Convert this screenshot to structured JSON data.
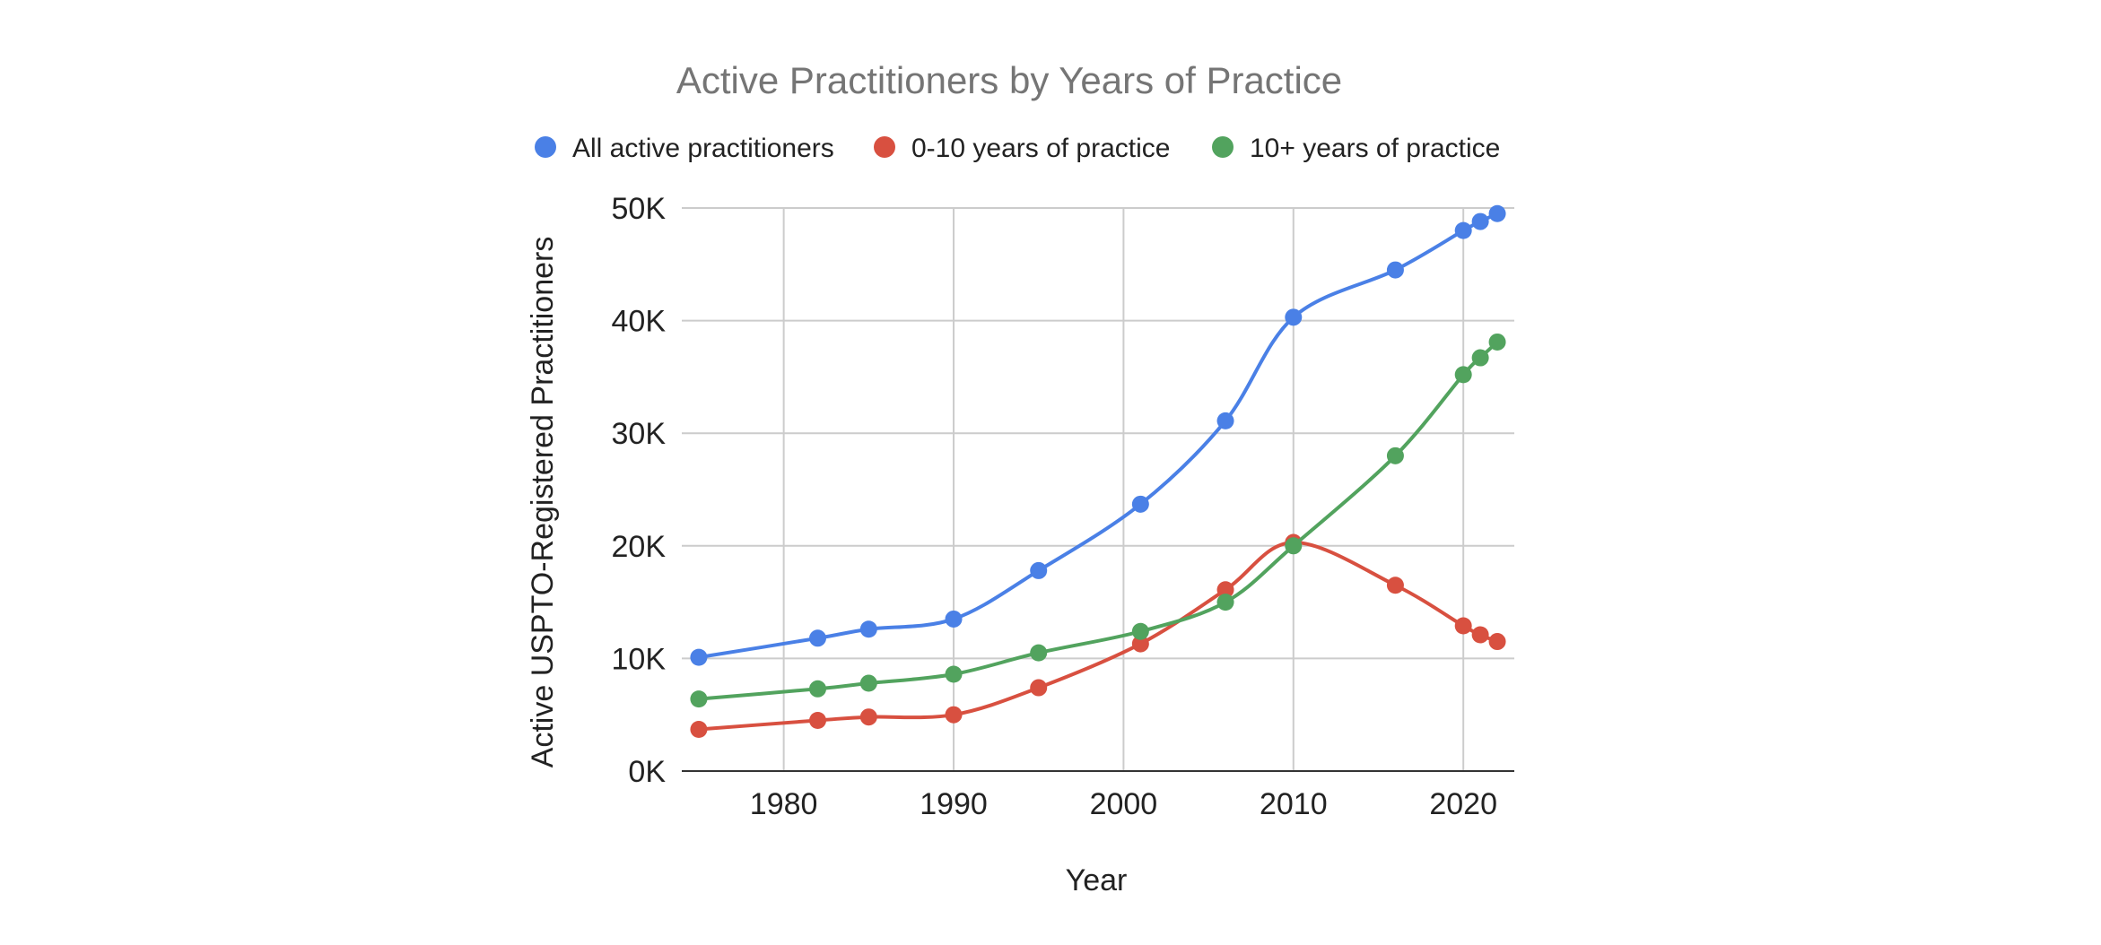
{
  "chart_data": {
    "type": "line",
    "title": "Active Practitioners by Years of Practice",
    "xlabel": "Year",
    "ylabel": "Active USPTO-Registered Practitioners",
    "xlim": [
      1974,
      2023
    ],
    "ylim": [
      0,
      50000
    ],
    "x_ticks": [
      1980,
      1990,
      2000,
      2010,
      2020
    ],
    "y_ticks": [
      0,
      10000,
      20000,
      30000,
      40000,
      50000
    ],
    "y_tick_labels": [
      "0K",
      "10K",
      "20K",
      "30K",
      "40K",
      "50K"
    ],
    "grid": true,
    "legend_position": "top",
    "smooth": true,
    "series": [
      {
        "name": "All active practitioners",
        "color": "#4a80e6",
        "points": [
          [
            1975,
            10100
          ],
          [
            1982,
            11800
          ],
          [
            1985,
            12600
          ],
          [
            1990,
            13500
          ],
          [
            1995,
            17800
          ],
          [
            2001,
            23700
          ],
          [
            2006,
            31100
          ],
          [
            2010,
            40300
          ],
          [
            2016,
            44500
          ],
          [
            2020,
            48000
          ],
          [
            2021,
            48800
          ],
          [
            2022,
            49500
          ]
        ]
      },
      {
        "name": "0-10 years of practice",
        "color": "#d85040",
        "points": [
          [
            1975,
            3700
          ],
          [
            1982,
            4500
          ],
          [
            1985,
            4800
          ],
          [
            1990,
            5000
          ],
          [
            1995,
            7400
          ],
          [
            2001,
            11300
          ],
          [
            2006,
            16100
          ],
          [
            2010,
            20300
          ],
          [
            2016,
            16500
          ],
          [
            2020,
            12900
          ],
          [
            2021,
            12100
          ],
          [
            2022,
            11500
          ]
        ]
      },
      {
        "name": "10+ years of practice",
        "color": "#52a35e",
        "points": [
          [
            1975,
            6400
          ],
          [
            1982,
            7300
          ],
          [
            1985,
            7800
          ],
          [
            1990,
            8600
          ],
          [
            1995,
            10500
          ],
          [
            2001,
            12400
          ],
          [
            2006,
            15000
          ],
          [
            2010,
            20000
          ],
          [
            2016,
            28000
          ],
          [
            2020,
            35200
          ],
          [
            2021,
            36700
          ],
          [
            2022,
            38100
          ]
        ]
      }
    ]
  }
}
